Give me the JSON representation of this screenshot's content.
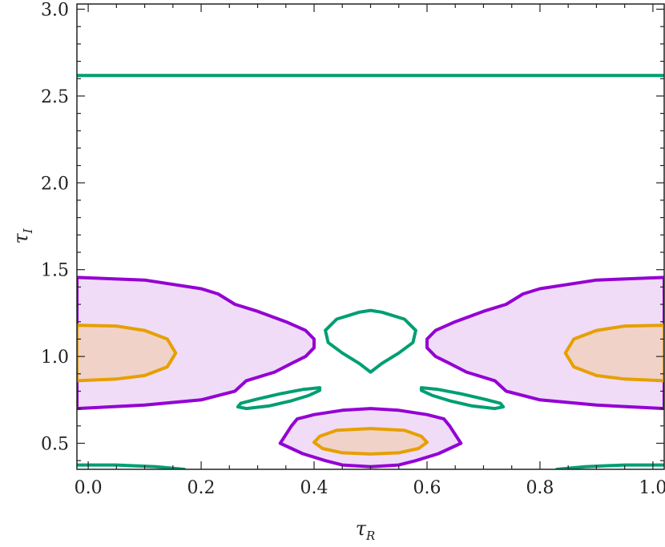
{
  "chart_data": {
    "type": "contour",
    "xlabel": "τ",
    "xlabel_sub": "R",
    "ylabel": "τ",
    "ylabel_sub": "I",
    "xlim": [
      -0.02,
      1.02
    ],
    "ylim": [
      0.35,
      3.03
    ],
    "x_ticks": [
      {
        "value": 0.0,
        "label": "0.0"
      },
      {
        "value": 0.2,
        "label": "0.2"
      },
      {
        "value": 0.4,
        "label": "0.4"
      },
      {
        "value": 0.6,
        "label": "0.6"
      },
      {
        "value": 0.8,
        "label": "0.8"
      },
      {
        "value": 1.0,
        "label": "1.0"
      }
    ],
    "y_ticks": [
      {
        "value": 0.5,
        "label": "0.5"
      },
      {
        "value": 1.0,
        "label": "1.0"
      },
      {
        "value": 1.5,
        "label": "1.5"
      },
      {
        "value": 2.0,
        "label": "2.0"
      },
      {
        "value": 2.5,
        "label": "2.5"
      },
      {
        "value": 3.0,
        "label": "3.0"
      }
    ],
    "grid": false,
    "colors": {
      "purple": "#9400d3",
      "purple_fill": "#f0dcf7",
      "orange": "#e69f00",
      "orange_fill": "#f1d2c8",
      "green": "#009e73"
    },
    "contours": [
      {
        "name": "purple-left",
        "stroke": "purple",
        "fill": "purple_fill",
        "closed": true,
        "points": [
          [
            -0.02,
            1.455
          ],
          [
            0.1,
            1.44
          ],
          [
            0.2,
            1.39
          ],
          [
            0.23,
            1.36
          ],
          [
            0.26,
            1.3
          ],
          [
            0.3,
            1.26
          ],
          [
            0.35,
            1.2
          ],
          [
            0.385,
            1.15
          ],
          [
            0.4,
            1.1
          ],
          [
            0.4,
            1.05
          ],
          [
            0.385,
            1.0
          ],
          [
            0.36,
            0.96
          ],
          [
            0.33,
            0.91
          ],
          [
            0.28,
            0.86
          ],
          [
            0.26,
            0.8
          ],
          [
            0.2,
            0.75
          ],
          [
            0.1,
            0.72
          ],
          [
            -0.02,
            0.7
          ]
        ]
      },
      {
        "name": "purple-right",
        "stroke": "purple",
        "fill": "purple_fill",
        "closed": true,
        "points": [
          [
            1.02,
            1.455
          ],
          [
            0.9,
            1.44
          ],
          [
            0.8,
            1.39
          ],
          [
            0.77,
            1.36
          ],
          [
            0.74,
            1.3
          ],
          [
            0.7,
            1.26
          ],
          [
            0.65,
            1.2
          ],
          [
            0.615,
            1.15
          ],
          [
            0.6,
            1.1
          ],
          [
            0.6,
            1.05
          ],
          [
            0.615,
            1.0
          ],
          [
            0.64,
            0.96
          ],
          [
            0.67,
            0.91
          ],
          [
            0.72,
            0.86
          ],
          [
            0.74,
            0.8
          ],
          [
            0.8,
            0.75
          ],
          [
            0.9,
            0.72
          ],
          [
            1.02,
            0.7
          ]
        ]
      },
      {
        "name": "purple-bottom",
        "stroke": "purple",
        "fill": "purple_fill",
        "closed": true,
        "points": [
          [
            0.4,
            0.665
          ],
          [
            0.45,
            0.69
          ],
          [
            0.5,
            0.7
          ],
          [
            0.55,
            0.69
          ],
          [
            0.6,
            0.665
          ],
          [
            0.63,
            0.64
          ],
          [
            0.64,
            0.6
          ],
          [
            0.65,
            0.55
          ],
          [
            0.66,
            0.5
          ],
          [
            0.62,
            0.44
          ],
          [
            0.58,
            0.4
          ],
          [
            0.55,
            0.375
          ],
          [
            0.5,
            0.365
          ],
          [
            0.45,
            0.375
          ],
          [
            0.42,
            0.4
          ],
          [
            0.38,
            0.44
          ],
          [
            0.34,
            0.5
          ],
          [
            0.35,
            0.55
          ],
          [
            0.36,
            0.6
          ],
          [
            0.37,
            0.64
          ]
        ]
      },
      {
        "name": "orange-left",
        "stroke": "orange",
        "fill": "orange_fill",
        "closed": true,
        "points": [
          [
            -0.02,
            1.18
          ],
          [
            0.05,
            1.175
          ],
          [
            0.1,
            1.15
          ],
          [
            0.14,
            1.1
          ],
          [
            0.155,
            1.02
          ],
          [
            0.14,
            0.94
          ],
          [
            0.1,
            0.89
          ],
          [
            0.05,
            0.87
          ],
          [
            -0.02,
            0.86
          ]
        ]
      },
      {
        "name": "orange-right",
        "stroke": "orange",
        "fill": "orange_fill",
        "closed": true,
        "points": [
          [
            1.02,
            1.18
          ],
          [
            0.95,
            1.175
          ],
          [
            0.9,
            1.15
          ],
          [
            0.86,
            1.1
          ],
          [
            0.845,
            1.02
          ],
          [
            0.86,
            0.94
          ],
          [
            0.9,
            0.89
          ],
          [
            0.95,
            0.87
          ],
          [
            1.02,
            0.86
          ]
        ]
      },
      {
        "name": "orange-bottom",
        "stroke": "orange",
        "fill": "orange_fill",
        "closed": true,
        "points": [
          [
            0.5,
            0.585
          ],
          [
            0.56,
            0.575
          ],
          [
            0.59,
            0.54
          ],
          [
            0.6,
            0.505
          ],
          [
            0.585,
            0.47
          ],
          [
            0.55,
            0.445
          ],
          [
            0.5,
            0.438
          ],
          [
            0.45,
            0.445
          ],
          [
            0.415,
            0.47
          ],
          [
            0.4,
            0.505
          ],
          [
            0.41,
            0.54
          ],
          [
            0.44,
            0.575
          ]
        ]
      },
      {
        "name": "green-teardrop",
        "stroke": "green",
        "fill": "none",
        "closed": true,
        "points": [
          [
            0.5,
            0.91
          ],
          [
            0.48,
            0.96
          ],
          [
            0.45,
            1.02
          ],
          [
            0.425,
            1.08
          ],
          [
            0.42,
            1.15
          ],
          [
            0.44,
            1.215
          ],
          [
            0.48,
            1.255
          ],
          [
            0.5,
            1.265
          ],
          [
            0.52,
            1.255
          ],
          [
            0.56,
            1.215
          ],
          [
            0.58,
            1.15
          ],
          [
            0.575,
            1.08
          ],
          [
            0.55,
            1.02
          ],
          [
            0.52,
            0.96
          ]
        ]
      },
      {
        "name": "green-lens-left",
        "stroke": "green",
        "fill": "none",
        "closed": true,
        "points": [
          [
            0.41,
            0.82
          ],
          [
            0.38,
            0.81
          ],
          [
            0.34,
            0.785
          ],
          [
            0.3,
            0.755
          ],
          [
            0.27,
            0.73
          ],
          [
            0.265,
            0.71
          ],
          [
            0.28,
            0.7
          ],
          [
            0.32,
            0.715
          ],
          [
            0.36,
            0.745
          ],
          [
            0.39,
            0.775
          ],
          [
            0.41,
            0.805
          ]
        ]
      },
      {
        "name": "green-lens-right",
        "stroke": "green",
        "fill": "none",
        "closed": true,
        "points": [
          [
            0.59,
            0.82
          ],
          [
            0.62,
            0.81
          ],
          [
            0.66,
            0.785
          ],
          [
            0.7,
            0.755
          ],
          [
            0.73,
            0.73
          ],
          [
            0.735,
            0.71
          ],
          [
            0.72,
            0.7
          ],
          [
            0.68,
            0.715
          ],
          [
            0.64,
            0.745
          ],
          [
            0.61,
            0.775
          ],
          [
            0.59,
            0.805
          ]
        ]
      },
      {
        "name": "green-line-top",
        "stroke": "green",
        "fill": "none",
        "closed": false,
        "points": [
          [
            -0.02,
            2.618
          ],
          [
            1.02,
            2.618
          ]
        ]
      },
      {
        "name": "green-arc-left",
        "stroke": "green",
        "fill": "none",
        "closed": false,
        "points": [
          [
            -0.02,
            0.375
          ],
          [
            0.05,
            0.375
          ],
          [
            0.12,
            0.365
          ],
          [
            0.17,
            0.35
          ]
        ]
      },
      {
        "name": "green-arc-right",
        "stroke": "green",
        "fill": "none",
        "closed": false,
        "points": [
          [
            1.02,
            0.375
          ],
          [
            0.95,
            0.375
          ],
          [
            0.88,
            0.365
          ],
          [
            0.83,
            0.35
          ]
        ]
      }
    ]
  }
}
